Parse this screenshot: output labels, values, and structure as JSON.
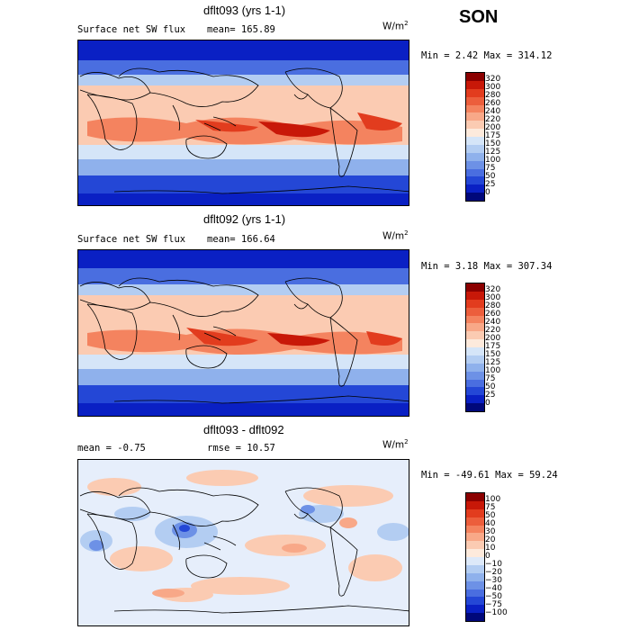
{
  "season": "SON",
  "units_base": "W/m",
  "units_exp": "2",
  "panels": [
    {
      "title": "dflt093 (yrs 1-1)",
      "left_label": "Surface net SW flux",
      "stat_label": "mean= 165.89",
      "minmax": "Min =    2.42 Max = 314.12",
      "scale": "abs"
    },
    {
      "title": "dflt092 (yrs 1-1)",
      "left_label": "Surface net SW flux",
      "stat_label": "mean= 166.64",
      "minmax": "Min =    3.18 Max = 307.34",
      "scale": "abs"
    },
    {
      "title": "dflt093 - dflt092",
      "left_label": "mean =  -0.75",
      "stat_label": "rmse =  10.57",
      "minmax": "Min = -49.61 Max =  59.24",
      "scale": "diff"
    }
  ],
  "chart_data": [
    {
      "type": "heatmap",
      "title": "dflt093 (yrs 1-1)",
      "subtitle": "Surface net SW flux",
      "mean": 165.89,
      "min": 2.42,
      "max": 314.12,
      "levels": [
        0,
        25,
        50,
        75,
        100,
        125,
        150,
        175,
        200,
        220,
        240,
        260,
        280,
        300,
        320
      ]
    },
    {
      "type": "heatmap",
      "title": "dflt092 (yrs 1-1)",
      "subtitle": "Surface net SW flux",
      "mean": 166.64,
      "min": 3.18,
      "max": 307.34,
      "levels": [
        0,
        25,
        50,
        75,
        100,
        125,
        150,
        175,
        200,
        220,
        240,
        260,
        280,
        300,
        320
      ]
    },
    {
      "type": "heatmap",
      "title": "dflt093 - dflt092",
      "mean": -0.75,
      "rmse": 10.57,
      "min": -49.61,
      "max": 59.24,
      "levels": [
        -100,
        -75,
        -50,
        -40,
        -30,
        -20,
        -10,
        0,
        10,
        20,
        30,
        40,
        50,
        75,
        100
      ]
    }
  ],
  "colorbars": {
    "abs": {
      "labels": [
        "320",
        "300",
        "280",
        "260",
        "240",
        "220",
        "200",
        "175",
        "150",
        "125",
        "100",
        "75",
        "50",
        "25",
        "0"
      ],
      "colors": [
        "#8b0000",
        "#c81808",
        "#e23c1e",
        "#ec5e3c",
        "#f4835f",
        "#f8a888",
        "#fbcbb2",
        "#fdeadc",
        "#d5e5f8",
        "#b3cdf2",
        "#8fb1ec",
        "#6d91e6",
        "#4a6ee0",
        "#2447d6",
        "#0a20c4",
        "#00087a"
      ]
    },
    "diff": {
      "labels": [
        "100",
        "75",
        "50",
        "40",
        "30",
        "20",
        "10",
        "0",
        "−10",
        "−20",
        "−30",
        "−40",
        "−50",
        "−75",
        "−100"
      ],
      "colors": [
        "#8b0000",
        "#c81808",
        "#e23c1e",
        "#ec5e3c",
        "#f4835f",
        "#f8a888",
        "#fbcbb2",
        "#fdeadc",
        "#dde9f9",
        "#b3cdf2",
        "#8fb1ec",
        "#6d91e6",
        "#4a6ee0",
        "#2447d6",
        "#0a20c4",
        "#00087a"
      ]
    }
  }
}
